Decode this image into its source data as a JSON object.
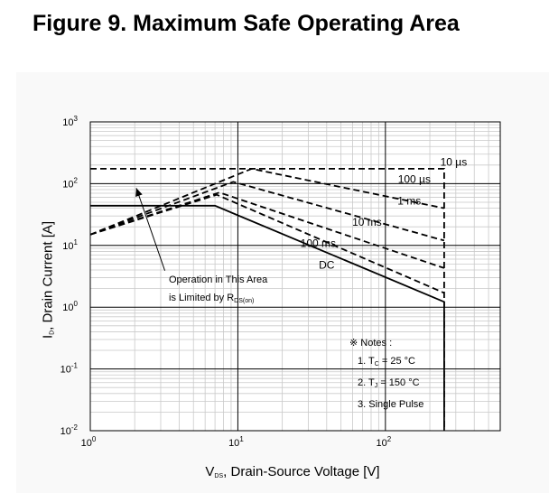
{
  "chart_data": {
    "type": "line",
    "title": "Figure 9. Maximum Safe Operating Area",
    "x_scale": "log",
    "y_scale": "log",
    "xlim": [
      1,
      600
    ],
    "ylim": [
      0.01,
      1000
    ],
    "grid": true,
    "xlabel": {
      "main": "V",
      "sub": "DS",
      "rest": ", Drain-Source Voltage [V]"
    },
    "ylabel": {
      "main": "I",
      "sub": "D",
      "rest": ", Drain Current [A]"
    },
    "x_ticks": [
      {
        "value": 1,
        "base": "10",
        "exp": "0"
      },
      {
        "value": 10,
        "base": "10",
        "exp": "1"
      },
      {
        "value": 100,
        "base": "10",
        "exp": "2"
      }
    ],
    "y_ticks": [
      {
        "value": 1000,
        "base": "10",
        "exp": "3"
      },
      {
        "value": 100,
        "base": "10",
        "exp": "2"
      },
      {
        "value": 10,
        "base": "10",
        "exp": "1"
      },
      {
        "value": 1,
        "base": "10",
        "exp": "0"
      },
      {
        "value": 0.1,
        "base": "10",
        "exp": "-1"
      },
      {
        "value": 0.01,
        "base": "10",
        "exp": "-2"
      }
    ],
    "series": [
      {
        "name": "10 µs",
        "style": "dashed",
        "x": [
          1,
          12.4,
          250,
          250
        ],
        "y": [
          174,
          174,
          174,
          0.01
        ]
      },
      {
        "name": "100 µs",
        "style": "dashed",
        "x": [
          1,
          12.4,
          250
        ],
        "y": [
          15,
          174,
          40
        ]
      },
      {
        "name": "1 ms",
        "style": "dashed",
        "x": [
          1,
          9.3,
          250
        ],
        "y": [
          15,
          107,
          12
        ]
      },
      {
        "name": "10 ms",
        "style": "dashed",
        "x": [
          1,
          7.5,
          250
        ],
        "y": [
          15,
          72,
          4.3
        ]
      },
      {
        "name": "100 ms",
        "style": "dashed",
        "x": [
          1,
          7.2,
          250
        ],
        "y": [
          15,
          66,
          1.7
        ]
      },
      {
        "name": "DC",
        "style": "solid",
        "x": [
          1,
          7,
          250,
          250
        ],
        "y": [
          44,
          44,
          1.22,
          0.01
        ]
      }
    ],
    "series_labels": [
      {
        "text": "10 µs",
        "x": 290,
        "y": 194
      },
      {
        "text": "100 µs",
        "x": 157,
        "y": 103
      },
      {
        "text": "1 ms",
        "x": 145,
        "y": 46
      },
      {
        "text": "10 ms",
        "x": 75,
        "y": 21
      },
      {
        "text": "100 ms",
        "x": 35,
        "y": 9.5
      },
      {
        "text": "DC",
        "x": 40,
        "y": 4.2
      }
    ],
    "annotation": {
      "line1": "Operation in This Area",
      "line2_pre": "is Limited by R",
      "line2_sub": "DS(on)",
      "arrow_from": {
        "x": 3.2,
        "y": 3.9
      },
      "arrow_to": {
        "x": 2.05,
        "y": 85
      }
    },
    "notes": {
      "heading": "※ Notes :",
      "items": [
        {
          "pre": "1. T",
          "sub": "C",
          "post": " = 25 °C"
        },
        {
          "pre": "2. T",
          "sub": "J",
          "post": " = 150 °C"
        },
        {
          "pre": "3. Single Pulse",
          "sub": "",
          "post": ""
        }
      ]
    }
  }
}
